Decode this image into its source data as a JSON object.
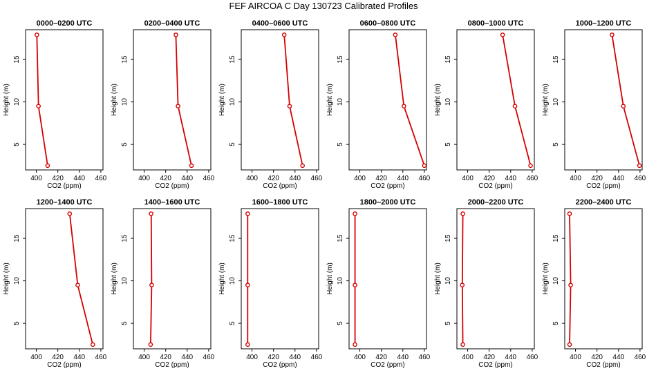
{
  "figure_title": "FEF AIRCOA C  Day 130723  Calibrated Profiles",
  "colors": {
    "series": "#d40000",
    "axis": "#000000"
  },
  "chart_data": {
    "type": "line",
    "xlabel": "CO2 (ppm)",
    "ylabel": "Height (m)",
    "xlim": [
      390,
      462
    ],
    "ylim": [
      2,
      18.5
    ],
    "xticks": [
      400,
      420,
      440,
      460
    ],
    "yticks": [
      5,
      10,
      15
    ],
    "heights": [
      2.5,
      9.5,
      17.9
    ],
    "panels": [
      {
        "title": "0000–0200 UTC",
        "co2": [
          410.5,
          402.0,
          400.5
        ]
      },
      {
        "title": "0200–0400 UTC",
        "co2": [
          444.0,
          431.5,
          429.5
        ]
      },
      {
        "title": "0400–0600 UTC",
        "co2": [
          447.0,
          435.0,
          430.0
        ]
      },
      {
        "title": "0600–0800 UTC",
        "co2": [
          460.0,
          441.0,
          433.0
        ]
      },
      {
        "title": "0800–1000 UTC",
        "co2": [
          458.5,
          444.0,
          432.5
        ]
      },
      {
        "title": "1000–1200 UTC",
        "co2": [
          459.5,
          444.5,
          434.0
        ]
      },
      {
        "title": "1200–1400 UTC",
        "co2": [
          452.5,
          438.5,
          431.0
        ]
      },
      {
        "title": "1400–1600 UTC",
        "co2": [
          406.0,
          407.0,
          406.5
        ]
      },
      {
        "title": "1600–1800 UTC",
        "co2": [
          396.0,
          396.0,
          396.0
        ]
      },
      {
        "title": "1800–2000 UTC",
        "co2": [
          395.5,
          395.5,
          395.5
        ]
      },
      {
        "title": "2000–2200 UTC",
        "co2": [
          395.5,
          395.0,
          395.5
        ]
      },
      {
        "title": "2200–2400 UTC",
        "co2": [
          394.5,
          395.5,
          394.5
        ]
      }
    ]
  }
}
